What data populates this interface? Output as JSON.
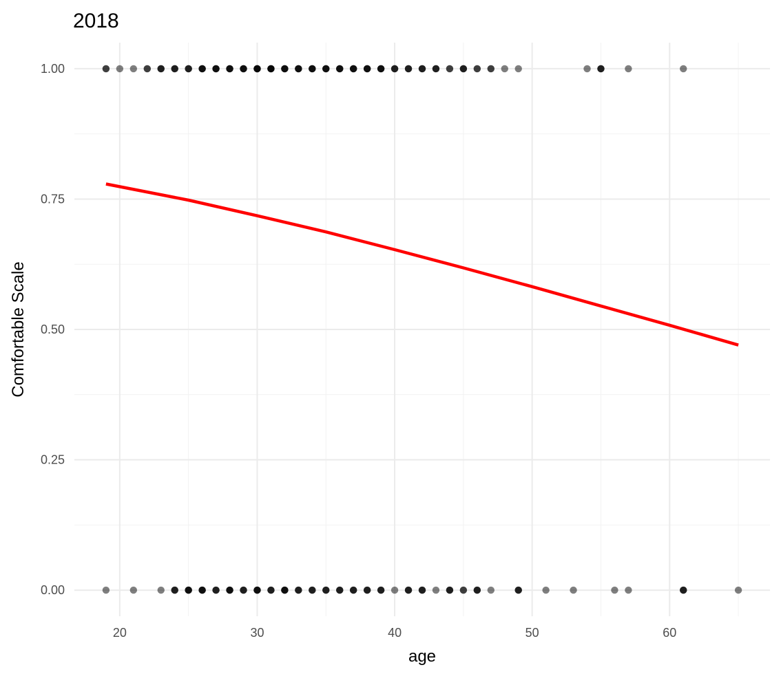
{
  "chart_data": {
    "type": "scatter",
    "title": "2018",
    "xlabel": "age",
    "ylabel": "Comfortable Scale",
    "xlim": [
      16.7,
      67.3
    ],
    "ylim": [
      -0.05,
      1.05
    ],
    "x_ticks": [
      20,
      30,
      40,
      50,
      60
    ],
    "y_ticks": [
      0.0,
      0.25,
      0.5,
      0.75,
      1.0
    ],
    "x_tick_labels": [
      "20",
      "30",
      "40",
      "50",
      "60"
    ],
    "y_tick_labels": [
      "0.00",
      "0.25",
      "0.50",
      "0.75",
      "1.00"
    ],
    "grid": true,
    "legend": "none",
    "colors": {
      "points": "#000000",
      "fit_line": "#ff0000",
      "grid": "#ebebeb"
    },
    "series": [
      {
        "kind": "points",
        "points": [
          {
            "x": 19,
            "y": 1,
            "n": 2
          },
          {
            "x": 20,
            "y": 1,
            "n": 1
          },
          {
            "x": 21,
            "y": 1,
            "n": 1
          },
          {
            "x": 22,
            "y": 1,
            "n": 2
          },
          {
            "x": 23,
            "y": 1,
            "n": 3
          },
          {
            "x": 24,
            "y": 1,
            "n": 3
          },
          {
            "x": 25,
            "y": 1,
            "n": 3
          },
          {
            "x": 26,
            "y": 1,
            "n": 4
          },
          {
            "x": 27,
            "y": 1,
            "n": 4
          },
          {
            "x": 28,
            "y": 1,
            "n": 4
          },
          {
            "x": 29,
            "y": 1,
            "n": 4
          },
          {
            "x": 30,
            "y": 1,
            "n": 5
          },
          {
            "x": 31,
            "y": 1,
            "n": 5
          },
          {
            "x": 32,
            "y": 1,
            "n": 4
          },
          {
            "x": 33,
            "y": 1,
            "n": 4
          },
          {
            "x": 34,
            "y": 1,
            "n": 4
          },
          {
            "x": 35,
            "y": 1,
            "n": 4
          },
          {
            "x": 36,
            "y": 1,
            "n": 4
          },
          {
            "x": 37,
            "y": 1,
            "n": 4
          },
          {
            "x": 38,
            "y": 1,
            "n": 4
          },
          {
            "x": 39,
            "y": 1,
            "n": 4
          },
          {
            "x": 40,
            "y": 1,
            "n": 3
          },
          {
            "x": 41,
            "y": 1,
            "n": 3
          },
          {
            "x": 42,
            "y": 1,
            "n": 3
          },
          {
            "x": 43,
            "y": 1,
            "n": 3
          },
          {
            "x": 44,
            "y": 1,
            "n": 2
          },
          {
            "x": 45,
            "y": 1,
            "n": 3
          },
          {
            "x": 46,
            "y": 1,
            "n": 2
          },
          {
            "x": 47,
            "y": 1,
            "n": 2
          },
          {
            "x": 48,
            "y": 1,
            "n": 1
          },
          {
            "x": 49,
            "y": 1,
            "n": 1
          },
          {
            "x": 54,
            "y": 1,
            "n": 1
          },
          {
            "x": 55,
            "y": 1,
            "n": 3
          },
          {
            "x": 57,
            "y": 1,
            "n": 1
          },
          {
            "x": 61,
            "y": 1,
            "n": 1
          },
          {
            "x": 19,
            "y": 0,
            "n": 1
          },
          {
            "x": 21,
            "y": 0,
            "n": 1
          },
          {
            "x": 23,
            "y": 0,
            "n": 1
          },
          {
            "x": 24,
            "y": 0,
            "n": 3
          },
          {
            "x": 25,
            "y": 0,
            "n": 4
          },
          {
            "x": 26,
            "y": 0,
            "n": 4
          },
          {
            "x": 27,
            "y": 0,
            "n": 3
          },
          {
            "x": 28,
            "y": 0,
            "n": 4
          },
          {
            "x": 29,
            "y": 0,
            "n": 3
          },
          {
            "x": 30,
            "y": 0,
            "n": 4
          },
          {
            "x": 31,
            "y": 0,
            "n": 3
          },
          {
            "x": 32,
            "y": 0,
            "n": 4
          },
          {
            "x": 33,
            "y": 0,
            "n": 3
          },
          {
            "x": 34,
            "y": 0,
            "n": 3
          },
          {
            "x": 35,
            "y": 0,
            "n": 3
          },
          {
            "x": 36,
            "y": 0,
            "n": 3
          },
          {
            "x": 37,
            "y": 0,
            "n": 3
          },
          {
            "x": 38,
            "y": 0,
            "n": 3
          },
          {
            "x": 39,
            "y": 0,
            "n": 3
          },
          {
            "x": 40,
            "y": 0,
            "n": 1
          },
          {
            "x": 41,
            "y": 0,
            "n": 3
          },
          {
            "x": 42,
            "y": 0,
            "n": 3
          },
          {
            "x": 43,
            "y": 0,
            "n": 1
          },
          {
            "x": 44,
            "y": 0,
            "n": 3
          },
          {
            "x": 45,
            "y": 0,
            "n": 2
          },
          {
            "x": 46,
            "y": 0,
            "n": 3
          },
          {
            "x": 47,
            "y": 0,
            "n": 1
          },
          {
            "x": 49,
            "y": 0,
            "n": 3
          },
          {
            "x": 51,
            "y": 0,
            "n": 1
          },
          {
            "x": 53,
            "y": 0,
            "n": 1
          },
          {
            "x": 56,
            "y": 0,
            "n": 1
          },
          {
            "x": 57,
            "y": 0,
            "n": 1
          },
          {
            "x": 61,
            "y": 0,
            "n": 3
          },
          {
            "x": 65,
            "y": 0,
            "n": 1
          }
        ]
      },
      {
        "kind": "fit-line",
        "x": [
          19,
          25,
          30,
          35,
          40,
          45,
          50,
          55,
          60,
          65
        ],
        "y": [
          0.779,
          0.748,
          0.718,
          0.687,
          0.653,
          0.618,
          0.582,
          0.545,
          0.508,
          0.47
        ]
      }
    ]
  }
}
